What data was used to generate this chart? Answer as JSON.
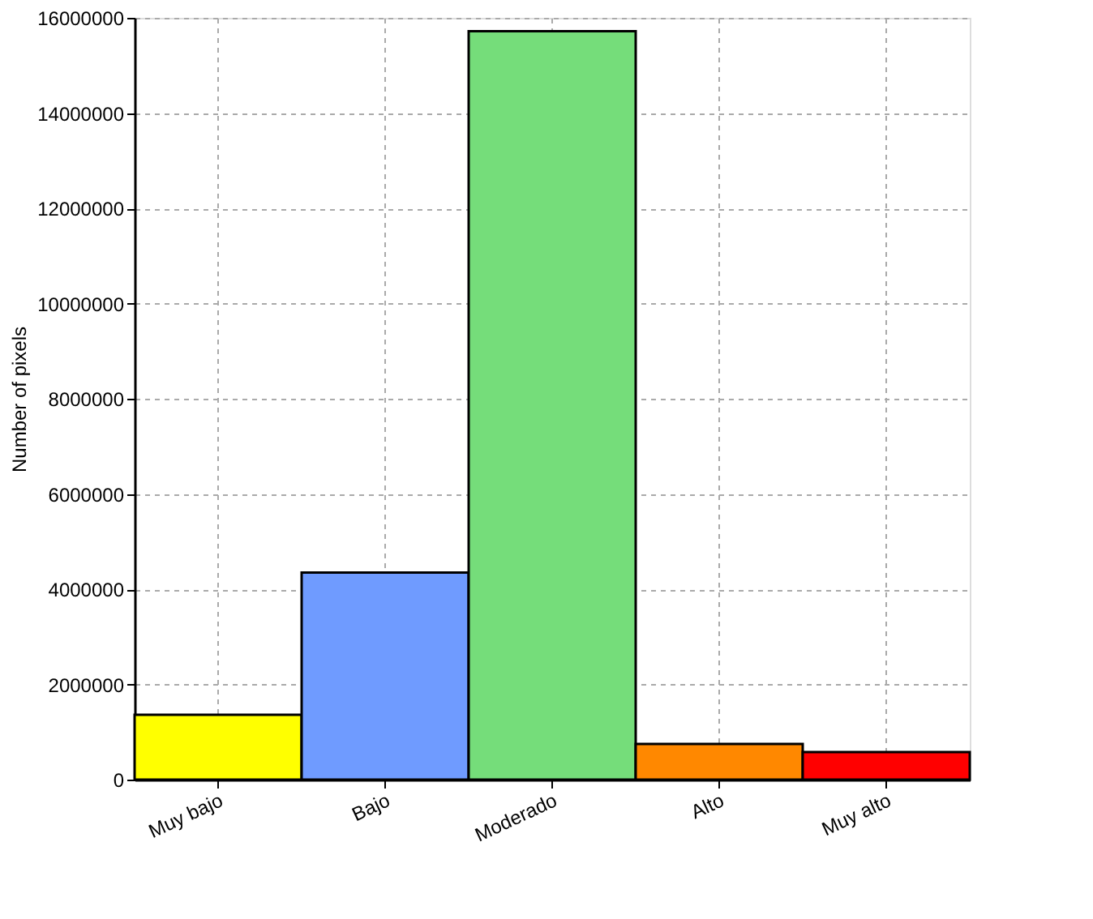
{
  "chart_data": {
    "type": "bar",
    "ylabel": "Number of pixels",
    "categories": [
      "Muy bajo",
      "Bajo",
      "Moderado",
      "Alto",
      "Muy alto"
    ],
    "values": [
      1360000,
      4350000,
      15720000,
      750000,
      580000
    ],
    "colors": [
      "#ffff00",
      "#6f9bff",
      "#75dd7a",
      "#ff8800",
      "#ff0000"
    ],
    "ylim": [
      0,
      16000000
    ],
    "yticks": [
      0,
      2000000,
      4000000,
      6000000,
      8000000,
      10000000,
      12000000,
      14000000,
      16000000
    ],
    "grid": true
  }
}
